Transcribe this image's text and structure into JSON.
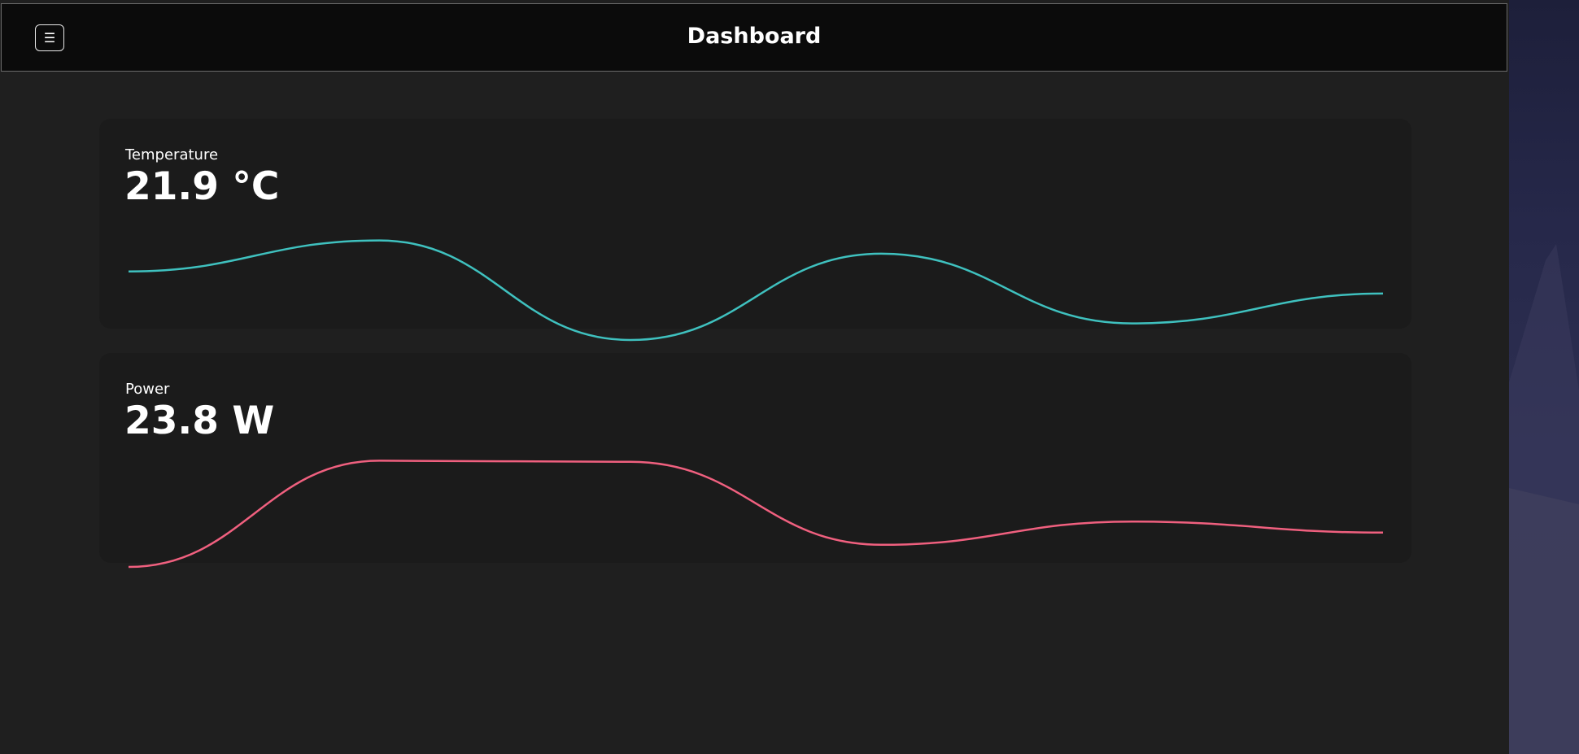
{
  "header": {
    "title": "Dashboard",
    "menu_icon_glyph": "☰",
    "menu_icon": "hamburger-menu-icon"
  },
  "cards": [
    {
      "label": "Temperature",
      "value": "21.9 °C",
      "color": "#3fc1bf"
    },
    {
      "label": "Power",
      "value": "23.8 W",
      "color": "#f0607f"
    }
  ],
  "chart_data": [
    {
      "type": "line",
      "series": [
        {
          "values": [
            0.62,
            0.9,
            0.0,
            0.78,
            0.15,
            0.42
          ]
        }
      ]
    },
    {
      "type": "line",
      "series": [
        {
          "values": [
            0.0,
            0.96,
            0.95,
            0.2,
            0.41,
            0.31
          ]
        }
      ]
    }
  ]
}
